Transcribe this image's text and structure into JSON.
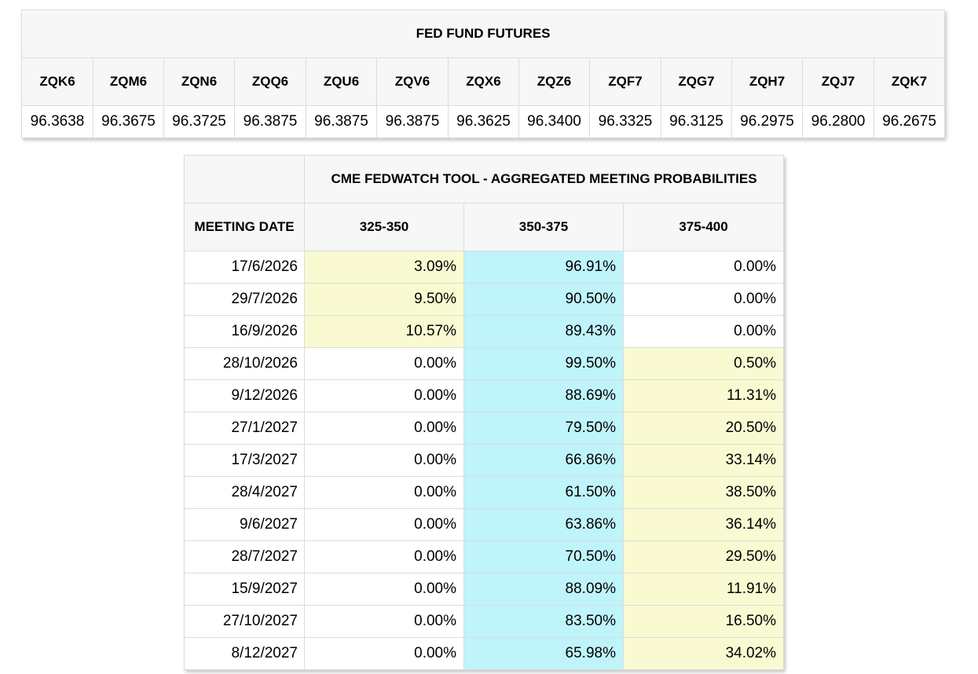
{
  "colors": {
    "header_bg": "#f7f7f7",
    "border": "#dcdcdc",
    "highlight_yellow": "#fafad2",
    "highlight_cyan": "#bff4fb"
  },
  "futures": {
    "title": "FED FUND FUTURES",
    "contracts": [
      {
        "code": "ZQK6",
        "price": "96.3638"
      },
      {
        "code": "ZQM6",
        "price": "96.3675"
      },
      {
        "code": "ZQN6",
        "price": "96.3725"
      },
      {
        "code": "ZQQ6",
        "price": "96.3875"
      },
      {
        "code": "ZQU6",
        "price": "96.3875"
      },
      {
        "code": "ZQV6",
        "price": "96.3875"
      },
      {
        "code": "ZQX6",
        "price": "96.3625"
      },
      {
        "code": "ZQZ6",
        "price": "96.3400"
      },
      {
        "code": "ZQF7",
        "price": "96.3325"
      },
      {
        "code": "ZQG7",
        "price": "96.3125"
      },
      {
        "code": "ZQH7",
        "price": "96.2975"
      },
      {
        "code": "ZQJ7",
        "price": "96.2800"
      },
      {
        "code": "ZQK7",
        "price": "96.2675"
      }
    ]
  },
  "fedwatch": {
    "title": "CME FEDWATCH TOOL - AGGREGATED MEETING PROBABILITIES",
    "date_header": "MEETING DATE",
    "ranges": [
      "325-350",
      "350-375",
      "375-400"
    ],
    "rows": [
      {
        "date": "17/6/2026",
        "probs": [
          "3.09%",
          "96.91%",
          "0.00%"
        ],
        "highlight": [
          "yellow",
          "cyan",
          "none"
        ]
      },
      {
        "date": "29/7/2026",
        "probs": [
          "9.50%",
          "90.50%",
          "0.00%"
        ],
        "highlight": [
          "yellow",
          "cyan",
          "none"
        ]
      },
      {
        "date": "16/9/2026",
        "probs": [
          "10.57%",
          "89.43%",
          "0.00%"
        ],
        "highlight": [
          "yellow",
          "cyan",
          "none"
        ]
      },
      {
        "date": "28/10/2026",
        "probs": [
          "0.00%",
          "99.50%",
          "0.50%"
        ],
        "highlight": [
          "none",
          "cyan",
          "yellow"
        ]
      },
      {
        "date": "9/12/2026",
        "probs": [
          "0.00%",
          "88.69%",
          "11.31%"
        ],
        "highlight": [
          "none",
          "cyan",
          "yellow"
        ]
      },
      {
        "date": "27/1/2027",
        "probs": [
          "0.00%",
          "79.50%",
          "20.50%"
        ],
        "highlight": [
          "none",
          "cyan",
          "yellow"
        ]
      },
      {
        "date": "17/3/2027",
        "probs": [
          "0.00%",
          "66.86%",
          "33.14%"
        ],
        "highlight": [
          "none",
          "cyan",
          "yellow"
        ]
      },
      {
        "date": "28/4/2027",
        "probs": [
          "0.00%",
          "61.50%",
          "38.50%"
        ],
        "highlight": [
          "none",
          "cyan",
          "yellow"
        ]
      },
      {
        "date": "9/6/2027",
        "probs": [
          "0.00%",
          "63.86%",
          "36.14%"
        ],
        "highlight": [
          "none",
          "cyan",
          "yellow"
        ]
      },
      {
        "date": "28/7/2027",
        "probs": [
          "0.00%",
          "70.50%",
          "29.50%"
        ],
        "highlight": [
          "none",
          "cyan",
          "yellow"
        ]
      },
      {
        "date": "15/9/2027",
        "probs": [
          "0.00%",
          "88.09%",
          "11.91%"
        ],
        "highlight": [
          "none",
          "cyan",
          "yellow"
        ]
      },
      {
        "date": "27/10/2027",
        "probs": [
          "0.00%",
          "83.50%",
          "16.50%"
        ],
        "highlight": [
          "none",
          "cyan",
          "yellow"
        ]
      },
      {
        "date": "8/12/2027",
        "probs": [
          "0.00%",
          "65.98%",
          "34.02%"
        ],
        "highlight": [
          "none",
          "cyan",
          "yellow"
        ]
      }
    ]
  }
}
